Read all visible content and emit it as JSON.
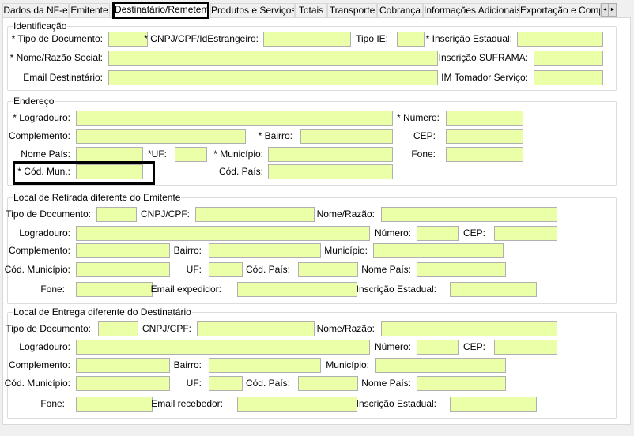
{
  "tabs": [
    {
      "label": "Dados da NF-e"
    },
    {
      "label": "Emitente"
    },
    {
      "label": "Destinatário/Remetente",
      "selected": true
    },
    {
      "label": "Produtos e Serviços"
    },
    {
      "label": "Totais"
    },
    {
      "label": "Transporte"
    },
    {
      "label": "Cobrança"
    },
    {
      "label": "Informações Adicionais"
    },
    {
      "label": "Exportação e Compr"
    }
  ],
  "scroll": {
    "left": "◄",
    "right": "►"
  },
  "input_color": "#ebffa8",
  "groups": [
    {
      "title": "Identificação",
      "fields": [
        {
          "label": "* Tipo de Documento:",
          "value": ""
        },
        {
          "label": "* CNPJ/CPF/IdEstrangeiro:",
          "value": ""
        },
        {
          "label": "Tipo IE:",
          "value": ""
        },
        {
          "label": "* Inscrição Estadual:",
          "value": ""
        },
        {
          "label": "* Nome/Razão Social:",
          "value": ""
        },
        {
          "label": "Inscrição SUFRAMA:",
          "value": ""
        },
        {
          "label": "Email Destinatário:",
          "value": ""
        },
        {
          "label": "IM Tomador Serviço:",
          "value": ""
        }
      ]
    },
    {
      "title": "Endereço",
      "fields": [
        {
          "label": "* Logradouro:",
          "value": ""
        },
        {
          "label": "* Número:",
          "value": ""
        },
        {
          "label": "Complemento:",
          "value": ""
        },
        {
          "label": "* Bairro:",
          "value": ""
        },
        {
          "label": "CEP:",
          "value": ""
        },
        {
          "label": "Nome País:",
          "value": ""
        },
        {
          "label": "*UF:",
          "value": ""
        },
        {
          "label": "* Município:",
          "value": ""
        },
        {
          "label": "Fone:",
          "value": ""
        },
        {
          "label": "* Cód. Mun.:",
          "value": ""
        },
        {
          "label": "Cód. País:",
          "value": ""
        }
      ]
    },
    {
      "title": "Local de Retirada diferente do Emitente",
      "fields": [
        {
          "label": "Tipo de Documento:",
          "value": ""
        },
        {
          "label": "CNPJ/CPF:",
          "value": ""
        },
        {
          "label": "Nome/Razão:",
          "value": ""
        },
        {
          "label": "Logradouro:",
          "value": ""
        },
        {
          "label": "Número:",
          "value": ""
        },
        {
          "label": "CEP:",
          "value": ""
        },
        {
          "label": "Complemento:",
          "value": ""
        },
        {
          "label": "Bairro:",
          "value": ""
        },
        {
          "label": "Município:",
          "value": ""
        },
        {
          "label": "Cód. Município:",
          "value": ""
        },
        {
          "label": "UF:",
          "value": ""
        },
        {
          "label": "Cód. País:",
          "value": ""
        },
        {
          "label": "Nome País:",
          "value": ""
        },
        {
          "label": "Fone:",
          "value": ""
        },
        {
          "label": "Email expedidor:",
          "value": ""
        },
        {
          "label": "Inscrição Estadual:",
          "value": ""
        }
      ]
    },
    {
      "title": "Local de Entrega diferente do Destinatário",
      "fields": [
        {
          "label": "Tipo de Documento:",
          "value": ""
        },
        {
          "label": "CNPJ/CPF:",
          "value": ""
        },
        {
          "label": "Nome/Razão:",
          "value": ""
        },
        {
          "label": "Logradouro:",
          "value": ""
        },
        {
          "label": "Número:",
          "value": ""
        },
        {
          "label": "CEP:",
          "value": ""
        },
        {
          "label": "Complemento:",
          "value": ""
        },
        {
          "label": "Bairro:",
          "value": ""
        },
        {
          "label": "Município:",
          "value": ""
        },
        {
          "label": "Cód. Município:",
          "value": ""
        },
        {
          "label": "UF:",
          "value": ""
        },
        {
          "label": "Cód. País:",
          "value": ""
        },
        {
          "label": "Nome País:",
          "value": ""
        },
        {
          "label": "Fone:",
          "value": ""
        },
        {
          "label": "Email recebedor:",
          "value": ""
        },
        {
          "label": "Inscrição Estadual:",
          "value": ""
        }
      ]
    }
  ]
}
